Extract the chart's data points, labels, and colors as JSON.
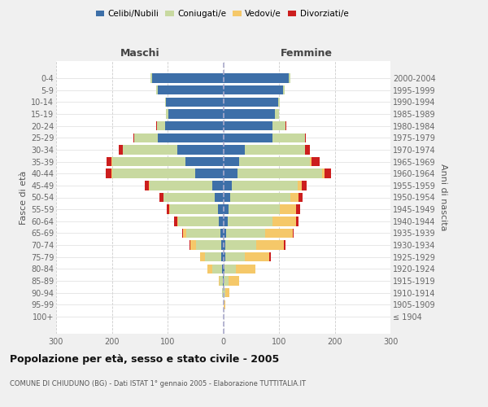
{
  "age_groups": [
    "100+",
    "95-99",
    "90-94",
    "85-89",
    "80-84",
    "75-79",
    "70-74",
    "65-69",
    "60-64",
    "55-59",
    "50-54",
    "45-49",
    "40-44",
    "35-39",
    "30-34",
    "25-29",
    "20-24",
    "15-19",
    "10-14",
    "5-9",
    "0-4"
  ],
  "birth_years": [
    "≤ 1904",
    "1905-1909",
    "1910-1914",
    "1915-1919",
    "1920-1924",
    "1925-1929",
    "1930-1934",
    "1935-1939",
    "1940-1944",
    "1945-1949",
    "1950-1954",
    "1955-1959",
    "1960-1964",
    "1965-1969",
    "1970-1974",
    "1975-1979",
    "1980-1984",
    "1985-1989",
    "1990-1994",
    "1995-1999",
    "2000-2004"
  ],
  "maschi_celibi": [
    0,
    0,
    0,
    1,
    2,
    3,
    4,
    5,
    8,
    10,
    15,
    20,
    50,
    68,
    82,
    118,
    105,
    98,
    103,
    118,
    128
  ],
  "maschi_coniugati": [
    0,
    0,
    2,
    5,
    18,
    30,
    45,
    62,
    73,
    85,
    92,
    112,
    150,
    132,
    98,
    42,
    14,
    5,
    2,
    2,
    2
  ],
  "maschi_vedovi": [
    0,
    0,
    0,
    2,
    8,
    8,
    10,
    5,
    2,
    2,
    1,
    1,
    1,
    1,
    0,
    0,
    0,
    0,
    0,
    0,
    0
  ],
  "maschi_divorziati": [
    0,
    0,
    0,
    0,
    0,
    0,
    2,
    2,
    5,
    5,
    7,
    8,
    10,
    8,
    8,
    2,
    2,
    0,
    0,
    0,
    0
  ],
  "femmine_nubili": [
    0,
    0,
    0,
    1,
    2,
    3,
    4,
    5,
    8,
    10,
    12,
    15,
    25,
    28,
    38,
    88,
    88,
    92,
    98,
    108,
    118
  ],
  "femmine_coniugate": [
    0,
    1,
    3,
    8,
    20,
    35,
    55,
    70,
    80,
    92,
    108,
    118,
    152,
    128,
    108,
    58,
    24,
    8,
    3,
    2,
    2
  ],
  "femmine_vedove": [
    0,
    2,
    8,
    20,
    35,
    45,
    50,
    50,
    42,
    28,
    15,
    8,
    5,
    3,
    1,
    0,
    0,
    0,
    0,
    0,
    0
  ],
  "femmine_divorziate": [
    0,
    0,
    0,
    0,
    0,
    2,
    2,
    2,
    5,
    8,
    8,
    8,
    12,
    14,
    8,
    2,
    1,
    0,
    0,
    0,
    0
  ],
  "color_celibi": "#3d6fa8",
  "color_coniugati": "#c8d9a0",
  "color_vedovi": "#f5c869",
  "color_divorziati": "#cc1e1e",
  "xlim": 300,
  "xticks": [
    -300,
    -200,
    -100,
    0,
    100,
    200,
    300
  ],
  "xticklabels": [
    "300",
    "200",
    "100",
    "0",
    "100",
    "200",
    "300"
  ],
  "title": "Popolazione per età, sesso e stato civile - 2005",
  "subtitle": "COMUNE DI CHIUDUNO (BG) - Dati ISTAT 1° gennaio 2005 - Elaborazione TUTTITALIA.IT",
  "label_maschi": "Maschi",
  "label_femmine": "Femmine",
  "ylabel_left": "Fasce di età",
  "ylabel_right": "Anni di nascita",
  "legend_labels": [
    "Celibi/Nubili",
    "Coniugati/e",
    "Vedovi/e",
    "Divorziati/e"
  ],
  "bg_color": "#f0f0f0",
  "plot_bg": "#ffffff"
}
